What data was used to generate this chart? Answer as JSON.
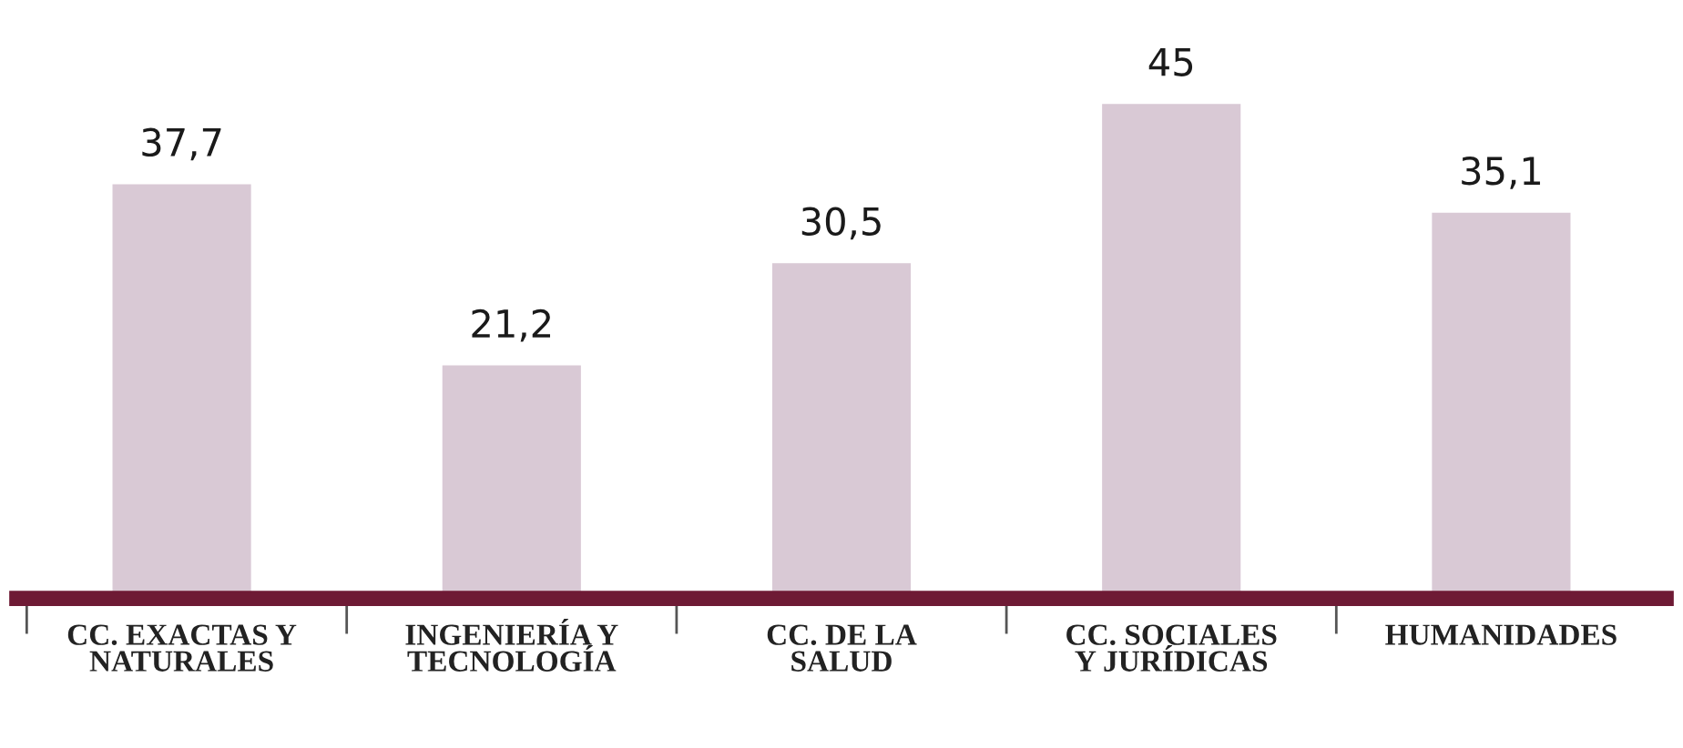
{
  "chart_data": {
    "type": "bar",
    "categories": [
      "CC. EXACTAS Y\nNATURALES",
      "INGENIERÍA Y\nTECNOLOGÍA",
      "CC. DE LA\nSALUD",
      "CC. SOCIALES\nY JURÍDICAS",
      "HUMANIDADES"
    ],
    "values": [
      37.7,
      21.2,
      30.5,
      45,
      35.1
    ],
    "color": "#d9c9d5",
    "value_labels": [
      "37,7",
      "21,2",
      "30,5",
      "45",
      "35,1"
    ],
    "grid": false,
    "legend": false
  }
}
